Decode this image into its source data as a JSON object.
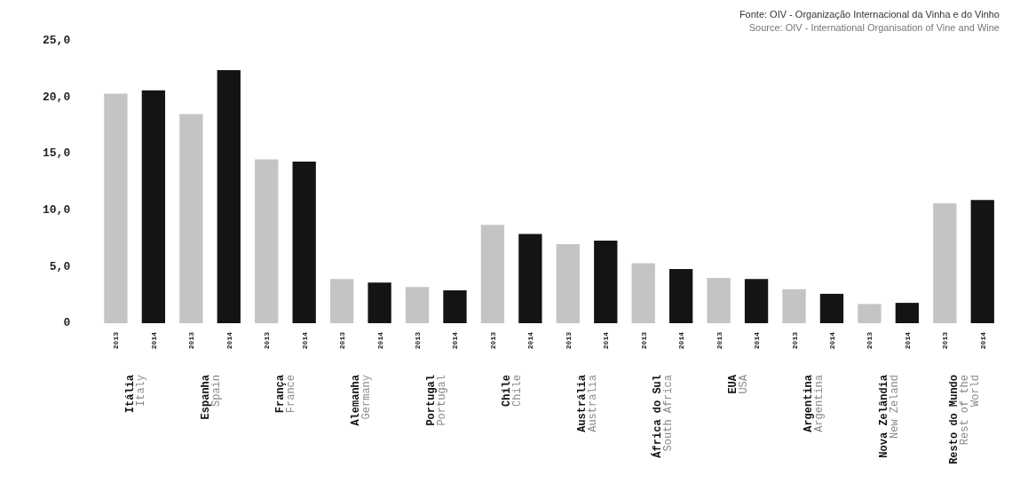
{
  "chart_data": {
    "type": "bar",
    "categories": [
      "Itália\nItaly",
      "Espanha\nSpain",
      "França\nFrance",
      "Alemanha\nGermany",
      "Portugal\nPortugal",
      "Chile\nChile",
      "Austrália\nAustralia",
      "África do Sul\nSouth Africa",
      "EUA\nUSA",
      "Argentina\nArgentina",
      "Nova Zelândia\nNew Zeland",
      "Resto do Mundo\nRest of the\nWorld"
    ],
    "series": [
      {
        "name": "2013",
        "color": "#c4c4c4",
        "values": [
          20.3,
          18.5,
          14.5,
          3.9,
          3.2,
          8.7,
          7.0,
          5.3,
          4.0,
          3.0,
          1.7,
          10.6
        ]
      },
      {
        "name": "2014",
        "color": "#131514",
        "values": [
          20.6,
          22.4,
          14.3,
          3.6,
          2.9,
          7.9,
          7.3,
          4.8,
          3.9,
          2.6,
          1.8,
          10.9
        ]
      }
    ],
    "ylim": [
      0,
      25
    ],
    "yticks": [
      0,
      {
        "value": 5,
        "label": "5,0"
      },
      {
        "value": 10,
        "label": "10,0"
      },
      {
        "value": 15,
        "label": "15,0"
      },
      {
        "value": 20,
        "label": "20,0"
      },
      {
        "value": 25,
        "label": "25,0"
      }
    ],
    "grid": false,
    "legend": false,
    "annotations": [
      "Fonte: OIV - Organização Internacional da Vinha e do Vinho",
      "Source: OIV - International Organisation of Vine and Wine"
    ]
  }
}
